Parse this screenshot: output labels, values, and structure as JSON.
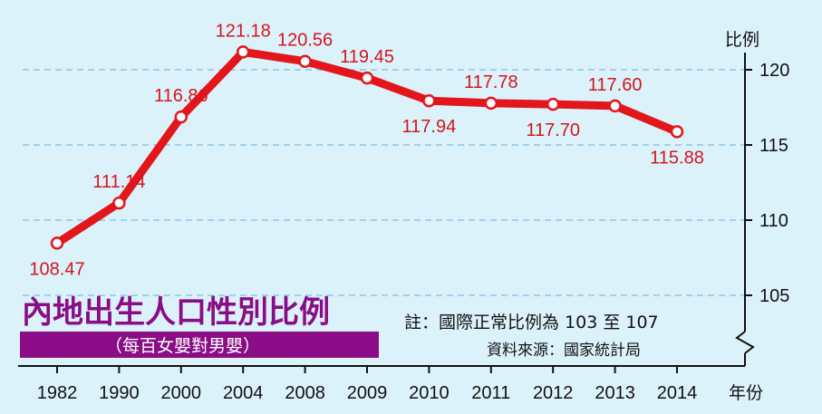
{
  "chart_data": {
    "type": "line",
    "title": "內地出生人口性別比例",
    "subtitle": "（每百女嬰對男嬰）",
    "xlabel": "年份",
    "ylabel": "比例",
    "categories": [
      "1982",
      "1990",
      "2000",
      "2004",
      "2008",
      "2009",
      "2010",
      "2011",
      "2012",
      "2013",
      "2014"
    ],
    "series": [
      {
        "values": [
          108.47,
          111.14,
          116.86,
          121.18,
          120.56,
          119.45,
          117.94,
          117.78,
          117.7,
          117.6,
          115.88
        ]
      }
    ],
    "data_labels": [
      "108.47",
      "111.14",
      "116.86",
      "121.18",
      "120.56",
      "119.45",
      "117.94",
      "117.78",
      "117.70",
      "117.60",
      "115.88"
    ],
    "yticks": [
      105,
      110,
      115,
      120
    ],
    "ylim": [
      100,
      122.5
    ],
    "axis_break": true,
    "grid": true,
    "note": "註：國際正常比例為 103 至 107",
    "source": "資料來源：國家統計局",
    "colors": {
      "line": "#e3161c",
      "marker_fill": "#ffffff",
      "title": "#8a0d86",
      "background": "#dcf2fb",
      "grid": "#8fc4e6"
    }
  }
}
